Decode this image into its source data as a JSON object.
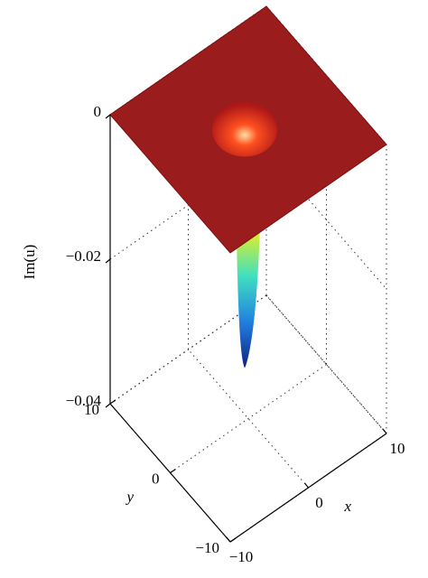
{
  "chart_data": {
    "type": "surface3d",
    "xlabel": "x",
    "ylabel": "y",
    "zlabel": "Im(u)",
    "xlim": [
      -10,
      10
    ],
    "xticks": [
      {
        "value": -10,
        "label": "−10"
      },
      0,
      10
    ],
    "ylim": [
      -10,
      10
    ],
    "yticks": [
      {
        "value": -10,
        "label": "−10"
      },
      0,
      10
    ],
    "zlim": [
      -0.04,
      0
    ],
    "zticks": [
      {
        "value": -0.04,
        "label": "−0.04"
      },
      {
        "value": -0.02,
        "label": "−0.02"
      },
      0
    ],
    "surface_min": -0.033,
    "plane_color": "#9b1c1c",
    "colormap": [
      "#ffb000",
      "#e8f020",
      "#40e0c0",
      "#2080e0",
      "#102080"
    ]
  }
}
